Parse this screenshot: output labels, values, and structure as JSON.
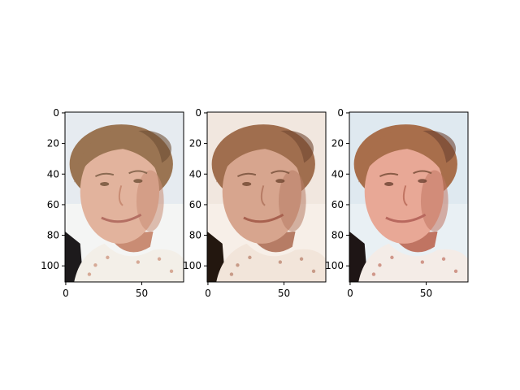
{
  "figure": {
    "panels": [
      {
        "id": "original",
        "palette": {
          "bg": "#e6ebf0",
          "bg_light": "#f4f5f4",
          "hair": "#9a7452",
          "hair_dark": "#6e4f36",
          "face": "#e2b39d",
          "face_shadow": "#c98c74",
          "shirt": "#f3efe8",
          "dark": "#1d1a1c",
          "lip": "#b46f63",
          "brow": "#8b6a52"
        }
      },
      {
        "id": "sepia-tone",
        "palette": {
          "bg": "#f1e7df",
          "bg_light": "#f7efe8",
          "hair": "#a06e4e",
          "hair_dark": "#6f4630",
          "face": "#d7a58e",
          "face_shadow": "#b67c65",
          "shirt": "#f2e5da",
          "dark": "#23170f",
          "lip": "#a8614f",
          "brow": "#875e48"
        }
      },
      {
        "id": "posterized",
        "palette": {
          "bg": "#dfe9f0",
          "bg_light": "#e9f0f4",
          "hair": "#a86e4b",
          "hair_dark": "#6c4131",
          "face": "#e8a896",
          "face_shadow": "#c07462",
          "shirt": "#f4ece7",
          "dark": "#1e1515",
          "lip": "#b8685e",
          "brow": "#8a5c47"
        }
      }
    ],
    "x_ticks": [
      "0",
      "50"
    ],
    "y_ticks": [
      "0",
      "20",
      "40",
      "60",
      "80",
      "100"
    ],
    "x_tick_values": [
      0,
      50
    ],
    "y_tick_values": [
      0,
      20,
      40,
      60,
      80,
      100
    ],
    "image_width": 78,
    "image_height": 111,
    "colors": {
      "axis": "#000000",
      "background": "#ffffff"
    }
  }
}
